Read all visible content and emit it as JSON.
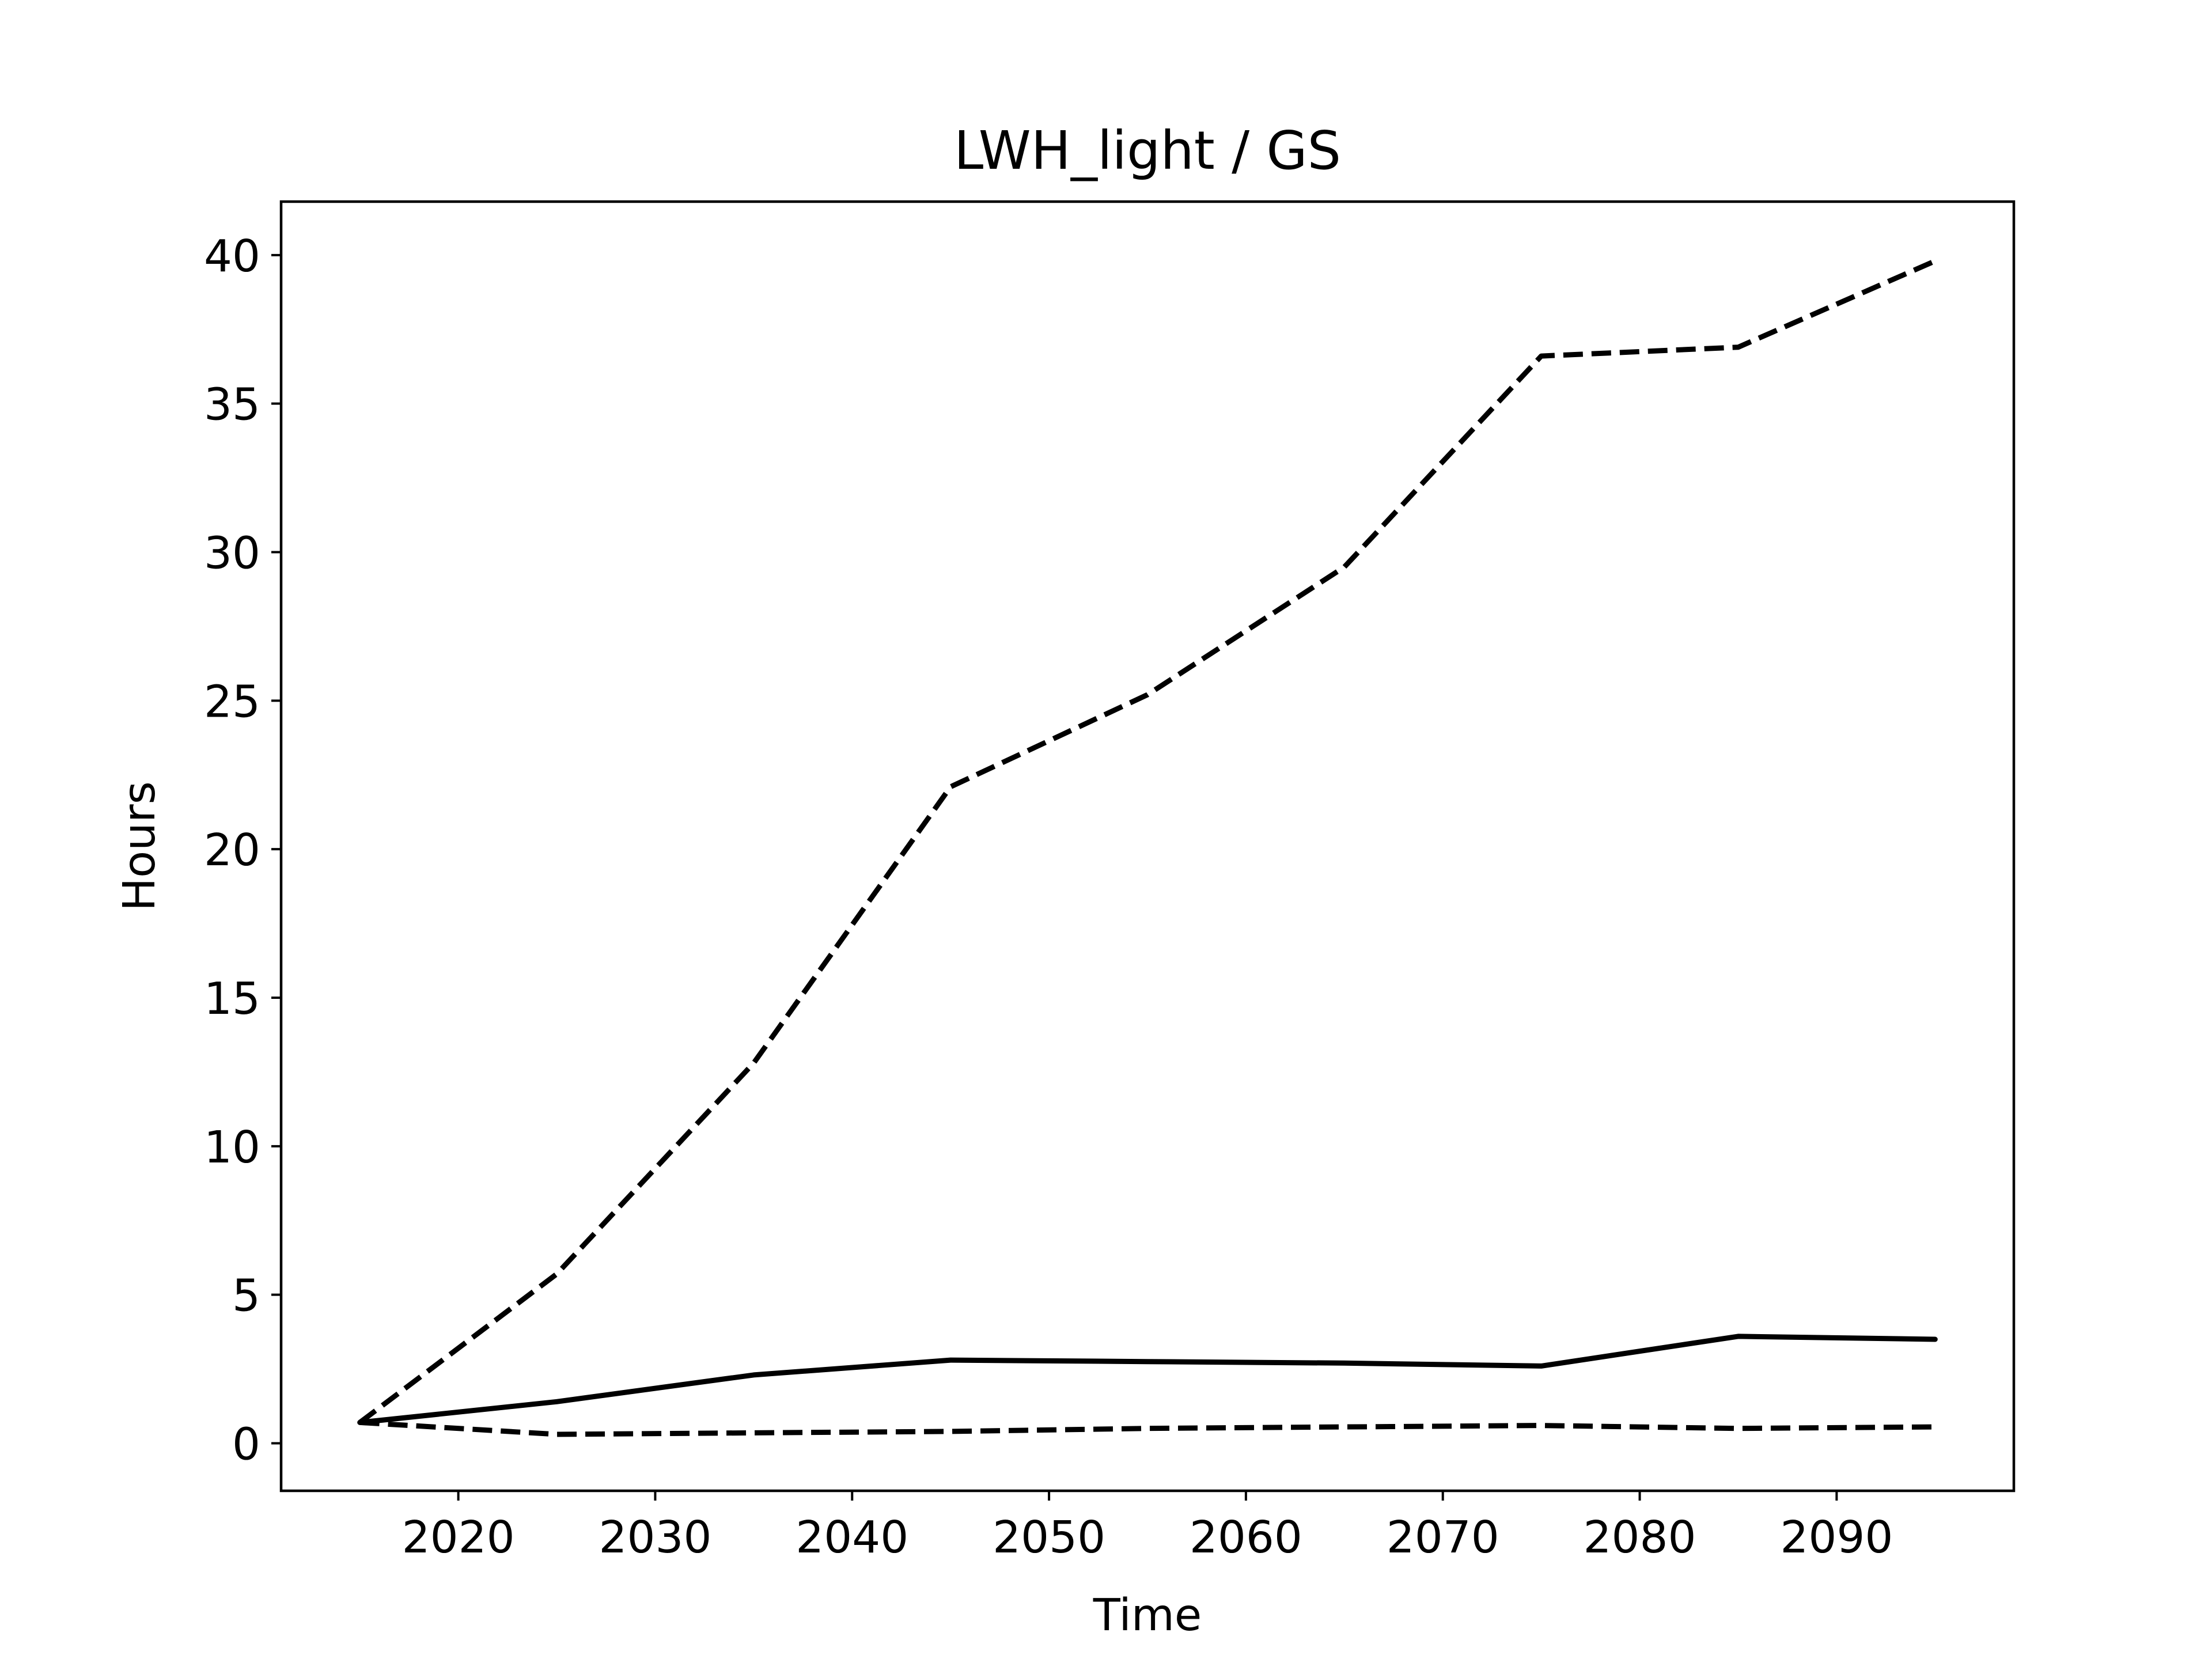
{
  "chart_data": {
    "type": "line",
    "title": "LWH_light / GS",
    "xlabel": "Time",
    "ylabel": "Hours",
    "xlim": [
      2011,
      2099
    ],
    "ylim": [
      -1.6,
      41.8
    ],
    "xticks": [
      2020,
      2030,
      2040,
      2050,
      2060,
      2070,
      2080,
      2090
    ],
    "yticks": [
      0,
      5,
      10,
      15,
      20,
      25,
      30,
      35,
      40
    ],
    "grid": false,
    "legend": null,
    "series": [
      {
        "style": "dashed",
        "color": "#000000",
        "x": [
          2015,
          2025,
          2035,
          2045,
          2055,
          2065,
          2075,
          2085,
          2095
        ],
        "y": [
          0.7,
          5.7,
          12.8,
          22.1,
          25.2,
          29.5,
          36.6,
          36.9,
          39.8
        ]
      },
      {
        "style": "solid",
        "color": "#000000",
        "x": [
          2015,
          2025,
          2035,
          2045,
          2055,
          2065,
          2075,
          2085,
          2095
        ],
        "y": [
          0.7,
          1.4,
          2.3,
          2.8,
          2.75,
          2.7,
          2.6,
          3.6,
          3.5
        ]
      },
      {
        "style": "dashed",
        "color": "#000000",
        "x": [
          2015,
          2025,
          2035,
          2045,
          2055,
          2065,
          2075,
          2085,
          2095
        ],
        "y": [
          0.7,
          0.3,
          0.35,
          0.4,
          0.5,
          0.55,
          0.6,
          0.5,
          0.55
        ]
      }
    ]
  }
}
